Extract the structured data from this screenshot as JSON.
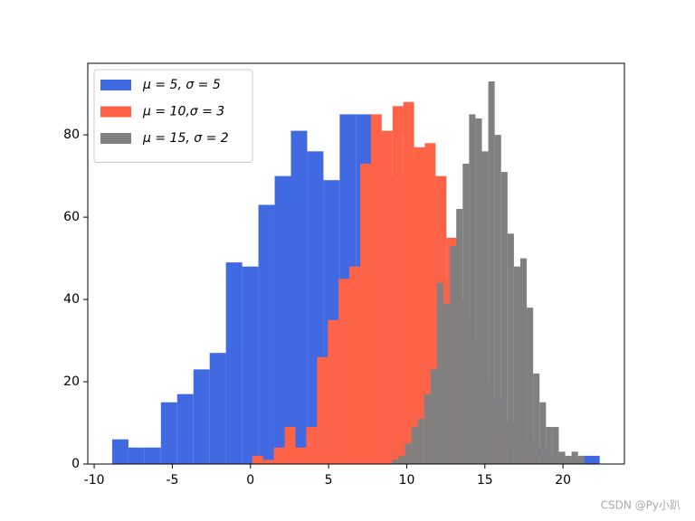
{
  "chart_data": {
    "type": "histogram",
    "xlim": [
      -10.41,
      23.93
    ],
    "ylim": [
      0,
      97.4
    ],
    "xticks": [
      -10,
      -5,
      0,
      5,
      10,
      15,
      20
    ],
    "yticks": [
      0,
      20,
      40,
      60,
      80
    ],
    "legend": "upper left",
    "series": [
      {
        "name": "μ = 5, σ = 5",
        "color": "#4169e1",
        "bins": [
          -8.85,
          -7.81,
          -6.77,
          -5.73,
          -4.69,
          -3.65,
          -2.61,
          -1.57,
          -0.53,
          0.51,
          1.55,
          2.59,
          3.63,
          4.67,
          5.71,
          6.75,
          7.79,
          8.83,
          9.87,
          10.91,
          11.95,
          12.99,
          14.03,
          15.07,
          16.11,
          17.15,
          18.19,
          19.23,
          20.27,
          21.31,
          22.35
        ],
        "values": [
          6,
          4,
          4,
          15,
          17,
          23,
          27,
          49,
          48,
          63,
          70,
          81,
          76,
          69,
          85,
          85,
          80,
          70,
          62,
          55,
          45,
          35,
          25,
          16,
          10,
          6,
          4,
          1,
          1,
          2
        ]
      },
      {
        "name": "μ = 10,σ = 3",
        "color": "#ff6347",
        "bins": [
          0.12,
          0.81,
          1.5,
          2.19,
          2.88,
          3.57,
          4.26,
          4.95,
          5.64,
          6.33,
          7.02,
          7.71,
          8.4,
          9.09,
          9.78,
          10.47,
          11.16,
          11.85,
          12.54,
          13.23,
          13.92,
          14.61,
          15.3,
          15.99,
          16.68,
          17.37,
          18.06,
          18.75,
          19.44,
          20.13,
          20.82
        ],
        "values": [
          2,
          1,
          4,
          9,
          4,
          9,
          26,
          35,
          45,
          48,
          73,
          85,
          81,
          87,
          88,
          77,
          78,
          70,
          55,
          40,
          30,
          20,
          12,
          8,
          5,
          3,
          2,
          1,
          0,
          1
        ]
      },
      {
        "name": "μ = 15, σ = 2",
        "color": "#808080",
        "bins": [
          9.07,
          9.48,
          9.89,
          10.3,
          10.71,
          11.12,
          11.53,
          11.94,
          12.35,
          12.76,
          13.17,
          13.58,
          13.99,
          14.4,
          14.81,
          15.22,
          15.63,
          16.04,
          16.45,
          16.86,
          17.27,
          17.68,
          18.09,
          18.5,
          18.91,
          19.32,
          19.73,
          20.14,
          20.55,
          20.96,
          21.37
        ],
        "values": [
          1,
          2,
          5,
          9,
          11,
          17,
          23,
          44,
          39,
          53,
          62,
          73,
          85,
          84,
          76,
          93,
          80,
          71,
          56,
          48,
          50,
          38,
          22,
          15,
          9,
          9,
          3,
          2,
          3,
          2
        ]
      }
    ]
  },
  "watermark": "CSDN @Py小趴"
}
